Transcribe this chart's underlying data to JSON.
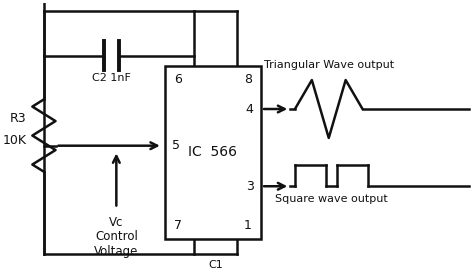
{
  "bg_color": "#ffffff",
  "line_color": "#111111",
  "ic_label": "IC  566",
  "tri_wave_label": "Triangular Wave output",
  "sq_wave_label": "Square wave output",
  "r3_label": "R3",
  "r3_val": "10K",
  "c2_label": "C2 1nF",
  "vc_label": "Vc",
  "ctrl_label": "Control\nVoltage",
  "c1_label": "C1"
}
